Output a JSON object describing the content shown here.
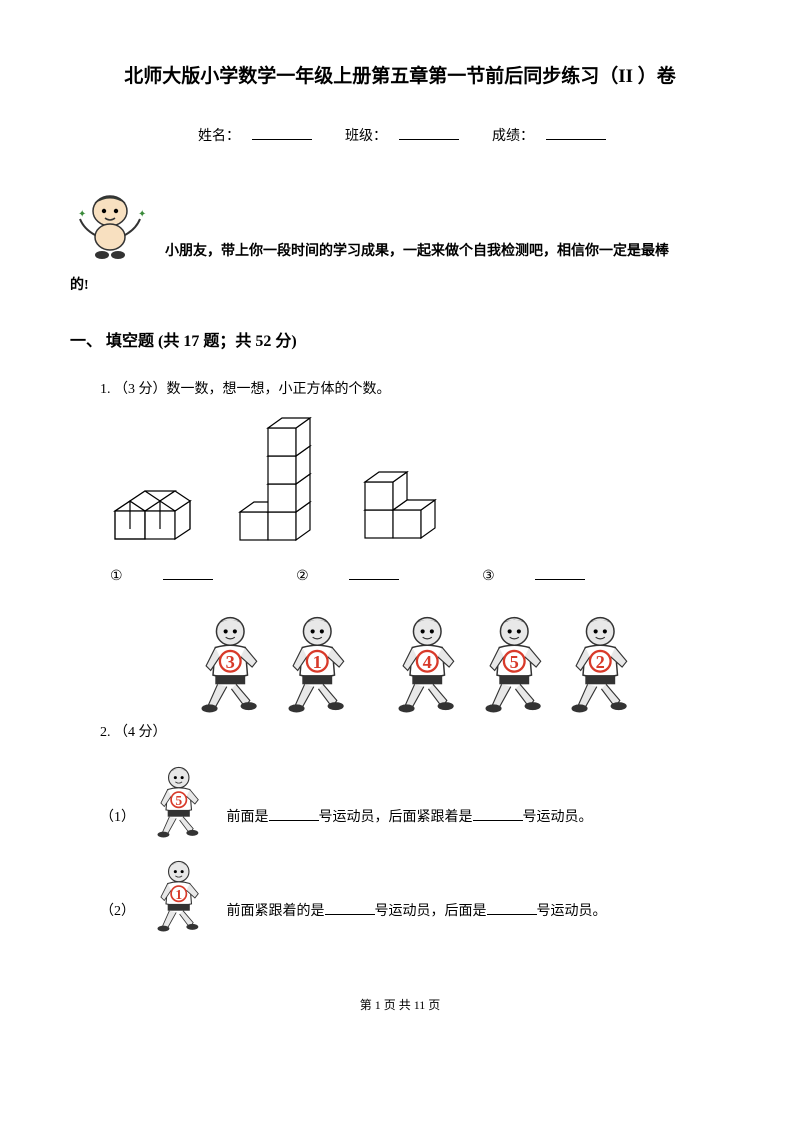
{
  "title": "北师大版小学数学一年级上册第五章第一节前后同步练习（II ）卷",
  "info": {
    "name_label": "姓名：",
    "class_label": "班级：",
    "score_label": "成绩："
  },
  "intro": {
    "line1": "小朋友，带上你一段时间的学习成果，一起来做个自我检测吧，相信你一定是最棒",
    "line2": "的!"
  },
  "section": {
    "heading": "一、 填空题 (共 17 题；共 52 分)"
  },
  "q1": {
    "text": "1. （3 分）数一数，想一想，小正方体的个数。",
    "labels": {
      "a": "①",
      "b": "②",
      "c": "③"
    }
  },
  "q2": {
    "prefix": "2. （4 分）",
    "sub1": {
      "num": "（1）",
      "text_before": "前面是",
      "text_mid": "号运动员，后面紧跟着是",
      "text_after": "号运动员。"
    },
    "sub2": {
      "num": "（2）",
      "text_before": "前面紧跟着的是",
      "text_mid": "号运动员，后面是",
      "text_after": "号运动员。"
    }
  },
  "runner_numbers": [
    "3",
    "1",
    "4",
    "5",
    "2"
  ],
  "footer": "第 1 页 共 11 页",
  "colors": {
    "text": "#000000",
    "bg": "#ffffff",
    "runner_red": "#d83a2a",
    "runner_green": "#3a8a3a",
    "face": "#f8e0c0"
  }
}
